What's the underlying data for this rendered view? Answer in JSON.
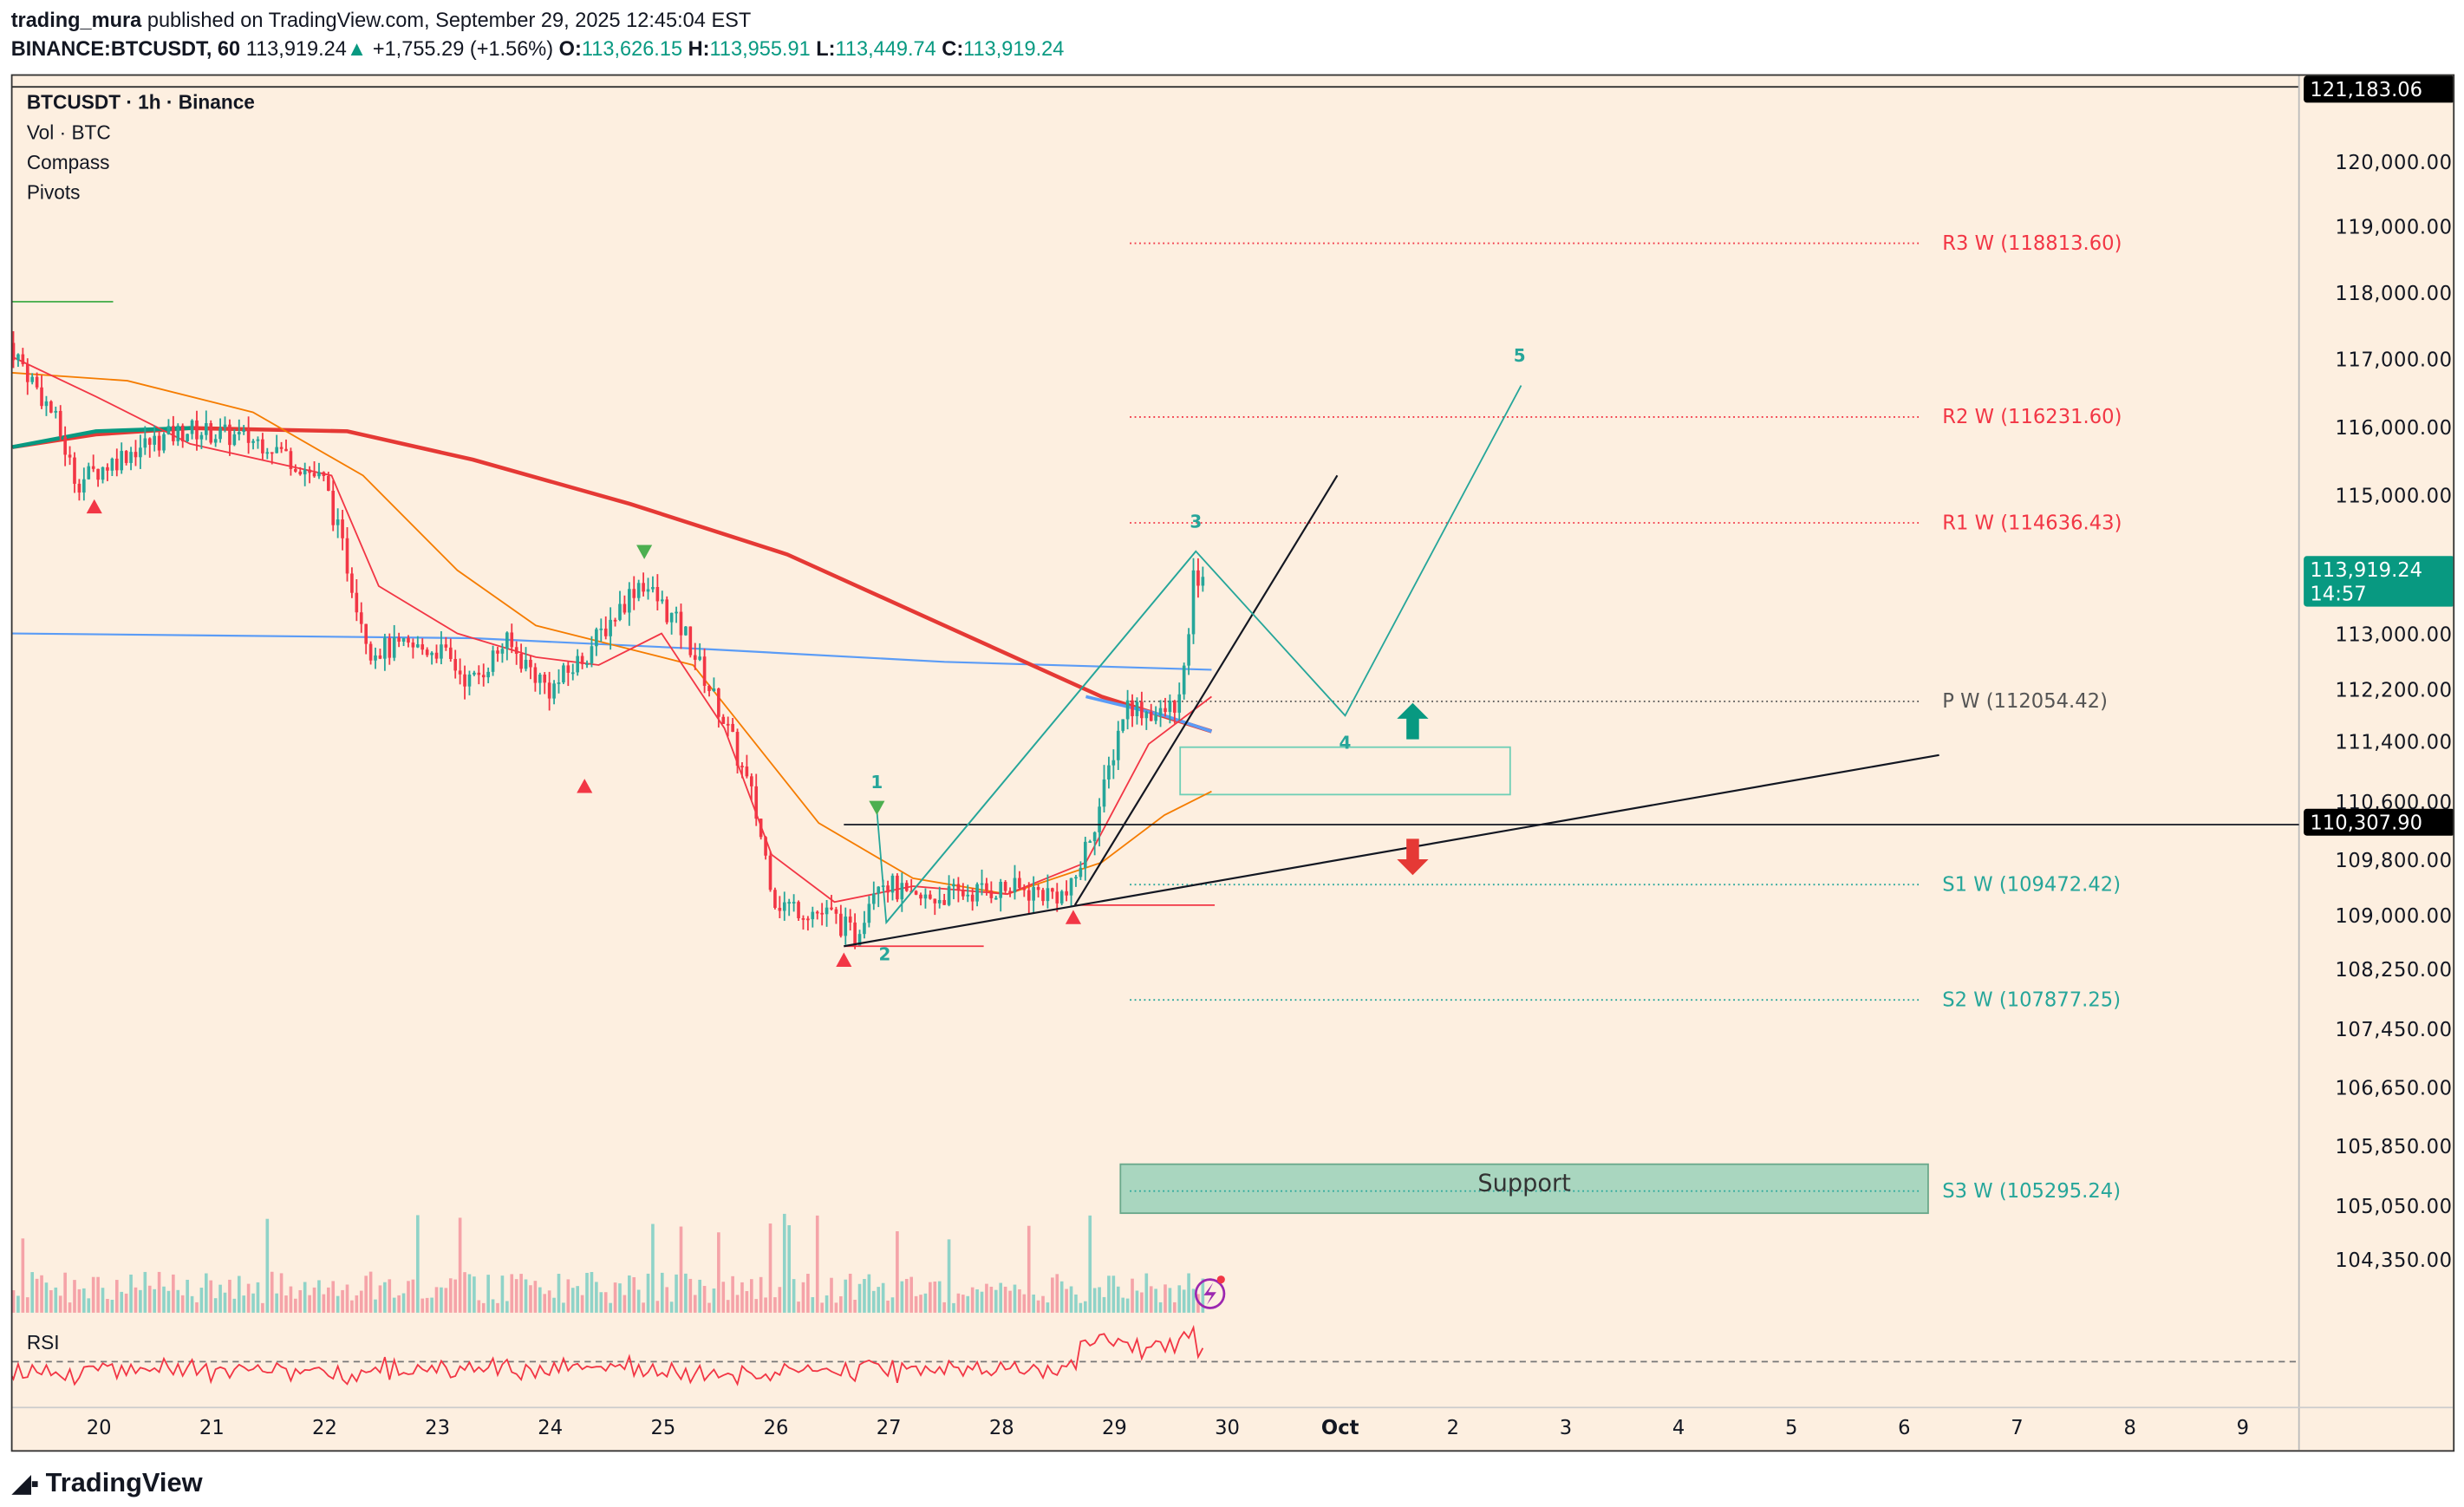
{
  "header": {
    "author": "trading_mura",
    "published": "published on TradingView.com, September 29, 2025 12:45:04 EST",
    "symbol": "BINANCE:BTCUSDT, 60",
    "last": "113,919.24",
    "arrow": "▲",
    "change": "+1,755.29 (+1.56%)",
    "o_label": "O:",
    "o": "113,626.15",
    "h_label": "H:",
    "h": "113,955.91",
    "l_label": "L:",
    "l": "113,449.74",
    "c_label": "C:",
    "c": "113,919.24"
  },
  "legend": [
    "BTCUSDT · 1h · Binance",
    "Vol · BTC",
    "Compass",
    "Pivots"
  ],
  "price_axis": [
    "120,000.00",
    "119,000.00",
    "118,000.00",
    "117,000.00",
    "116,000.00",
    "115,000.00",
    "113,000.00",
    "112,200.00",
    "111,400.00",
    "110,600.00",
    "109,800.00",
    "109,000.00",
    "108,250.00",
    "107,450.00",
    "106,650.00",
    "105,850.00",
    "105,050.00",
    "104,350.00"
  ],
  "tags": {
    "top": "121,183.06",
    "price": "113,919.24",
    "countdown": "14:57",
    "line": "110,307.90"
  },
  "x_axis": [
    "20",
    "21",
    "22",
    "23",
    "24",
    "25",
    "26",
    "27",
    "28",
    "29",
    "30",
    "Oct",
    "2",
    "3",
    "4",
    "5",
    "6",
    "7",
    "8",
    "9"
  ],
  "pivots": [
    {
      "label": "R3 W (118813.60)",
      "color": "#f23645"
    },
    {
      "label": "R2 W (116231.60)",
      "color": "#f23645"
    },
    {
      "label": "R1 W (114636.43)",
      "color": "#f23645"
    },
    {
      "label": "P W (112054.42)",
      "color": "#555555"
    },
    {
      "label": "S1 W (109472.42)",
      "color": "#26a69a"
    },
    {
      "label": "S2 W (107877.25)",
      "color": "#26a69a"
    },
    {
      "label": "S3 W (105295.24)",
      "color": "#26a69a"
    }
  ],
  "waves": [
    "1",
    "2",
    "3",
    "4",
    "5"
  ],
  "support_label": "Support",
  "rsi_label": "RSI",
  "footer": "TradingView",
  "colors": {
    "up": "#26a69a",
    "down": "#f23645",
    "bg": "#fdefe0",
    "accent": "#089981"
  },
  "chart_data": {
    "type": "candlestick",
    "symbol": "BTCUSDT",
    "interval": "1h",
    "waypoints": [
      [
        19.2,
        117300
      ],
      [
        19.6,
        116200
      ],
      [
        19.8,
        115200
      ],
      [
        20.3,
        115700
      ],
      [
        20.8,
        116000
      ],
      [
        21.5,
        115800
      ],
      [
        22,
        115200
      ],
      [
        22.2,
        114000
      ],
      [
        22.4,
        112800
      ],
      [
        23,
        112800
      ],
      [
        23.3,
        112300
      ],
      [
        23.6,
        112900
      ],
      [
        24,
        112200
      ],
      [
        24.3,
        112700
      ],
      [
        24.8,
        113800
      ],
      [
        25.2,
        113000
      ],
      [
        25.5,
        111900
      ],
      [
        25.8,
        110600
      ],
      [
        26,
        109200
      ],
      [
        26.5,
        109000
      ],
      [
        26.7,
        108700
      ],
      [
        26.9,
        109600
      ],
      [
        27.2,
        109200
      ],
      [
        27.5,
        109300
      ],
      [
        28,
        109400
      ],
      [
        28.6,
        109300
      ],
      [
        28.9,
        110700
      ],
      [
        29.1,
        112000
      ],
      [
        29.4,
        111800
      ],
      [
        29.6,
        112100
      ],
      [
        29.7,
        113800
      ],
      [
        29.82,
        113919
      ]
    ],
    "ylim": [
      104000,
      121500
    ],
    "last_close": 113919.24
  }
}
